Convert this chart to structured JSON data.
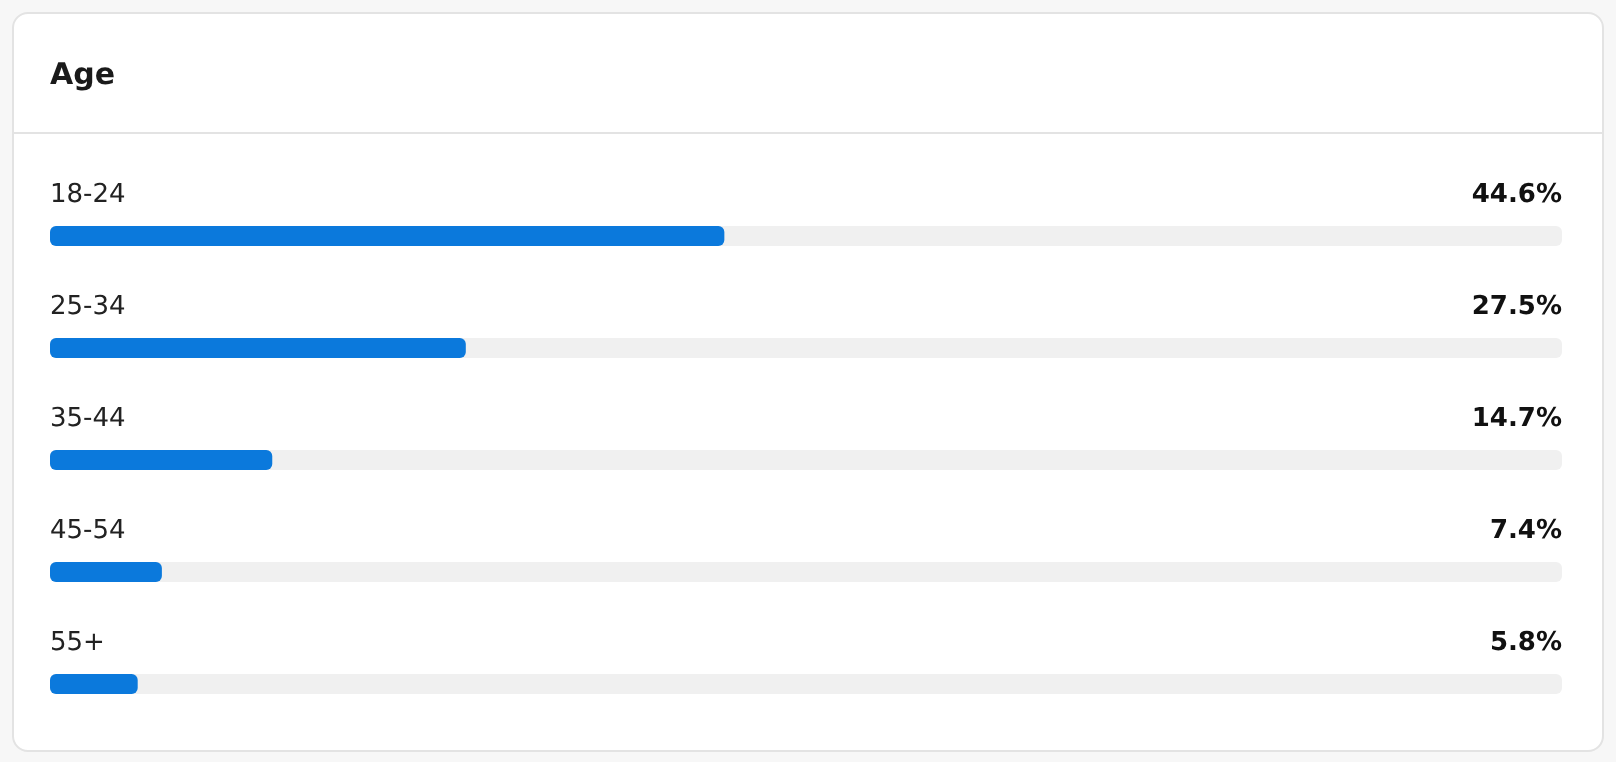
{
  "chart_data": {
    "type": "bar",
    "orientation": "horizontal",
    "title": "Age",
    "categories": [
      "18-24",
      "25-34",
      "35-44",
      "45-54",
      "55+"
    ],
    "values": [
      44.6,
      27.5,
      14.7,
      7.4,
      5.8
    ],
    "value_labels": [
      "44.6%",
      "27.5%",
      "14.7%",
      "7.4%",
      "5.8%"
    ],
    "color": "#0b79dc",
    "xlim": [
      0,
      100
    ],
    "tick_labels": "y"
  }
}
